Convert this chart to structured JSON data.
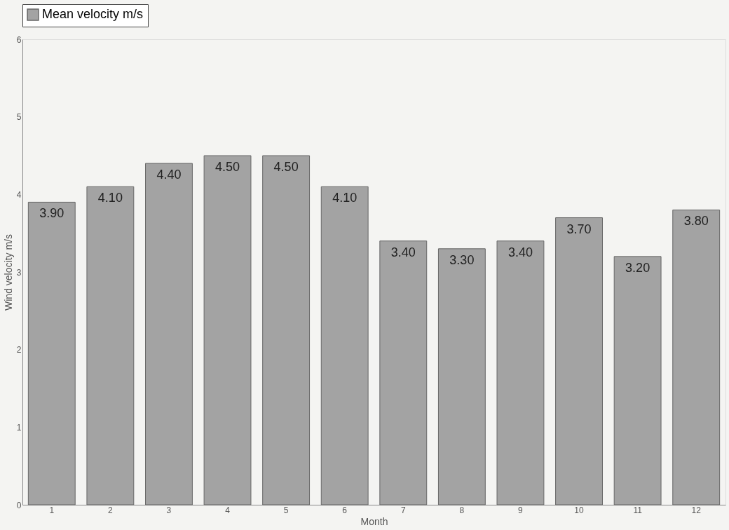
{
  "chart_data": {
    "type": "bar",
    "xlabel": "Month",
    "ylabel": "Wind velocity m/s",
    "categories": [
      "1",
      "2",
      "3",
      "4",
      "5",
      "6",
      "7",
      "8",
      "9",
      "10",
      "11",
      "12"
    ],
    "series": [
      {
        "name": "Mean velocity m/s",
        "color": "#a3a3a3",
        "values": [
          3.9,
          4.1,
          4.4,
          4.5,
          4.5,
          4.1,
          3.4,
          3.3,
          3.4,
          3.7,
          3.2,
          3.8
        ],
        "value_labels": [
          "3.90",
          "4.10",
          "4.40",
          "4.50",
          "4.50",
          "4.10",
          "3.40",
          "3.30",
          "3.40",
          "3.70",
          "3.20",
          "3.80"
        ]
      }
    ],
    "ylim": [
      0,
      6
    ],
    "yticks": [
      0,
      1,
      2,
      3,
      4,
      5,
      6
    ],
    "legend": "top",
    "grid": false
  }
}
